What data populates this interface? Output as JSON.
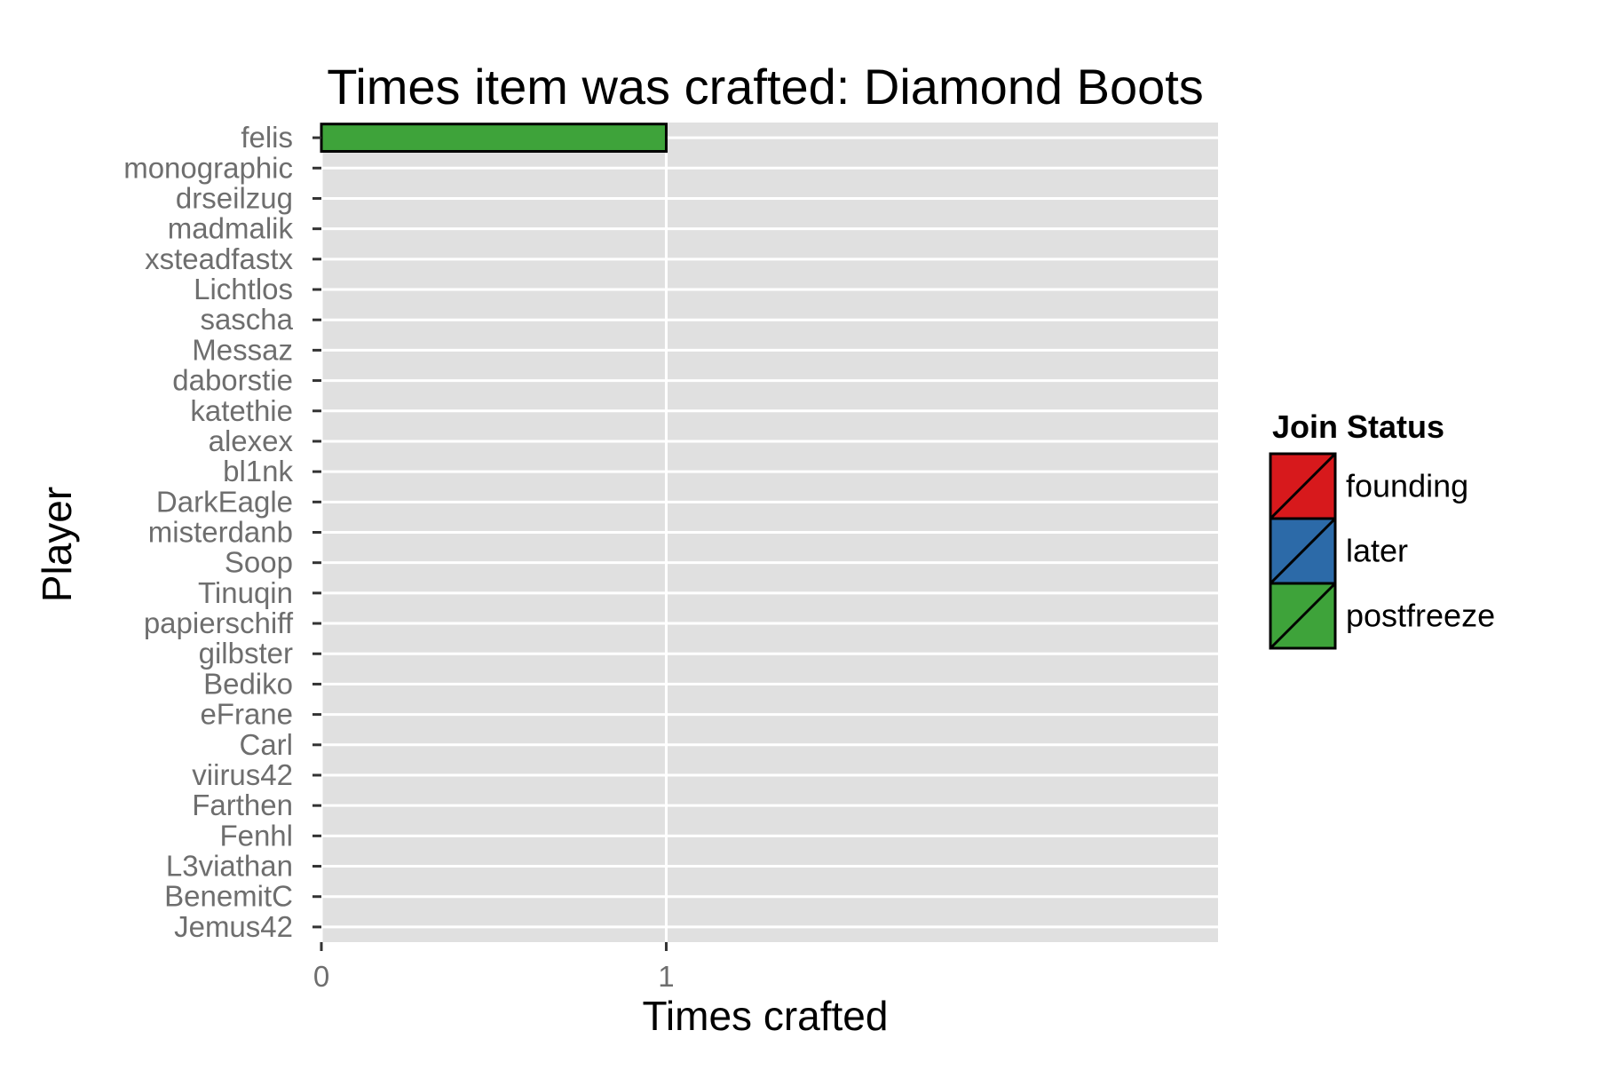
{
  "chart_data": {
    "type": "bar",
    "orientation": "horizontal",
    "title": "Times item was crafted: Diamond Boots",
    "xlabel": "Times crafted",
    "ylabel": "Player",
    "xlim": [
      0,
      2.6
    ],
    "x_ticks": [
      "0",
      "1"
    ],
    "grid": true,
    "categories": [
      "felis",
      "monographic",
      "drseilzug",
      "madmalik",
      "xsteadfastx",
      "Lichtlos",
      "sascha",
      "Messaz",
      "daborstie",
      "katethie",
      "alexex",
      "bl1nk",
      "DarkEagle",
      "misterdanb",
      "Soop",
      "Tinuqin",
      "papierschiff",
      "gilbster",
      "Bediko",
      "eFrane",
      "Carl",
      "viirus42",
      "Farthen",
      "Fenhl",
      "L3viathan",
      "BenemitC",
      "Jemus42"
    ],
    "values": [
      1,
      0,
      0,
      0,
      0,
      0,
      0,
      0,
      0,
      0,
      0,
      0,
      0,
      0,
      0,
      0,
      0,
      0,
      0,
      0,
      0,
      0,
      0,
      0,
      0,
      0,
      0
    ],
    "bar_status": [
      "postfreeze",
      "",
      "",
      "",
      "",
      "",
      "",
      "",
      "",
      "",
      "",
      "",
      "",
      "",
      "",
      "",
      "",
      "",
      "",
      "",
      "",
      "",
      "",
      "",
      "",
      "",
      ""
    ],
    "legend": {
      "title": "Join Status",
      "position": "right",
      "entries": [
        {
          "label": "founding",
          "color": "#d7191c"
        },
        {
          "label": "later",
          "color": "#2c6aa8"
        },
        {
          "label": "postfreeze",
          "color": "#3ea33a"
        }
      ]
    },
    "colors": {
      "panel": "#e0e0e0",
      "grid": "#ffffff",
      "tick_text": "#6e6e6e"
    }
  }
}
